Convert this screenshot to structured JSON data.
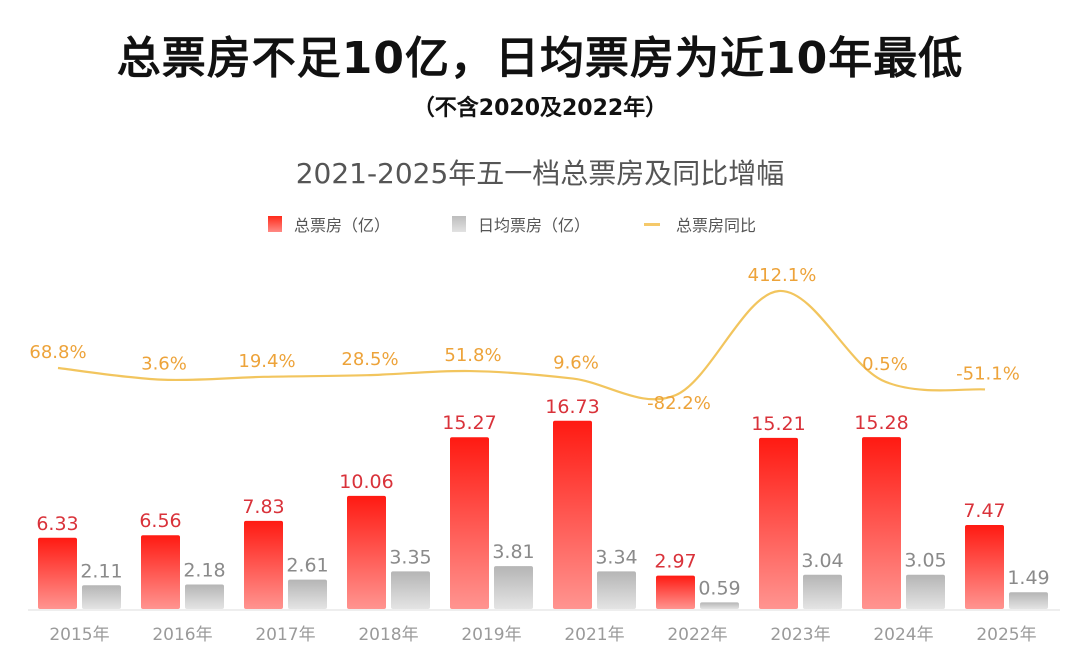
{
  "headline": "总票房不足10亿，日均票房为近10年最低",
  "subheadline": "（不含2020及2022年）",
  "legend": {
    "total": "总票房（亿）",
    "daily": "日均票房（亿）",
    "yoy": "总票房同比"
  },
  "colors": {
    "total_top": "#ff1a12",
    "total_bottom": "#ff9490",
    "total_label": "#d9323a",
    "daily_top": "#b5b5b5",
    "daily_bottom": "#e4e4e4",
    "daily_label": "#8a8a8a",
    "yoy_line": "#f2c55e",
    "yoy_label": "#eda33a",
    "axis_label": "#9a9a9a"
  },
  "chart_data": {
    "type": "bar",
    "title": "2021-2025年五一档总票房及同比增幅",
    "xlabel": "",
    "ylabel": "",
    "categories": [
      "2015年",
      "2016年",
      "2017年",
      "2018年",
      "2019年",
      "2021年",
      "2022年",
      "2023年",
      "2024年",
      "2025年"
    ],
    "series": [
      {
        "name": "总票房（亿）",
        "type": "bar",
        "values": [
          6.33,
          6.56,
          7.83,
          10.06,
          15.27,
          16.73,
          2.97,
          15.21,
          15.28,
          7.47
        ]
      },
      {
        "name": "日均票房（亿）",
        "type": "bar",
        "values": [
          2.11,
          2.18,
          2.61,
          3.35,
          3.81,
          3.34,
          0.59,
          3.04,
          3.05,
          1.49
        ]
      },
      {
        "name": "总票房同比",
        "type": "line",
        "unit": "%",
        "values": [
          68.8,
          3.6,
          19.4,
          28.5,
          51.8,
          9.6,
          -82.2,
          412.1,
          0.5,
          -51.1
        ],
        "labels": [
          "68.8%",
          "3.6%",
          "19.4%",
          "28.5%",
          "51.8%",
          "9.6%",
          "-82.2%",
          "412.1%",
          "0.5%",
          "-51.1%"
        ]
      }
    ],
    "value_labels": {
      "total": [
        "6.33",
        "6.56",
        "7.83",
        "10.06",
        "15.27",
        "16.73",
        "2.97",
        "15.21",
        "15.28",
        "7.47"
      ],
      "daily": [
        "2.11",
        "2.18",
        "2.61",
        "3.35",
        "3.81",
        "3.34",
        "0.59",
        "3.04",
        "3.05",
        "1.49"
      ]
    },
    "ylim_bar": [
      0,
      17
    ],
    "ylim_line": [
      -100,
      450
    ],
    "grid": false,
    "legend_position": "top-center"
  }
}
